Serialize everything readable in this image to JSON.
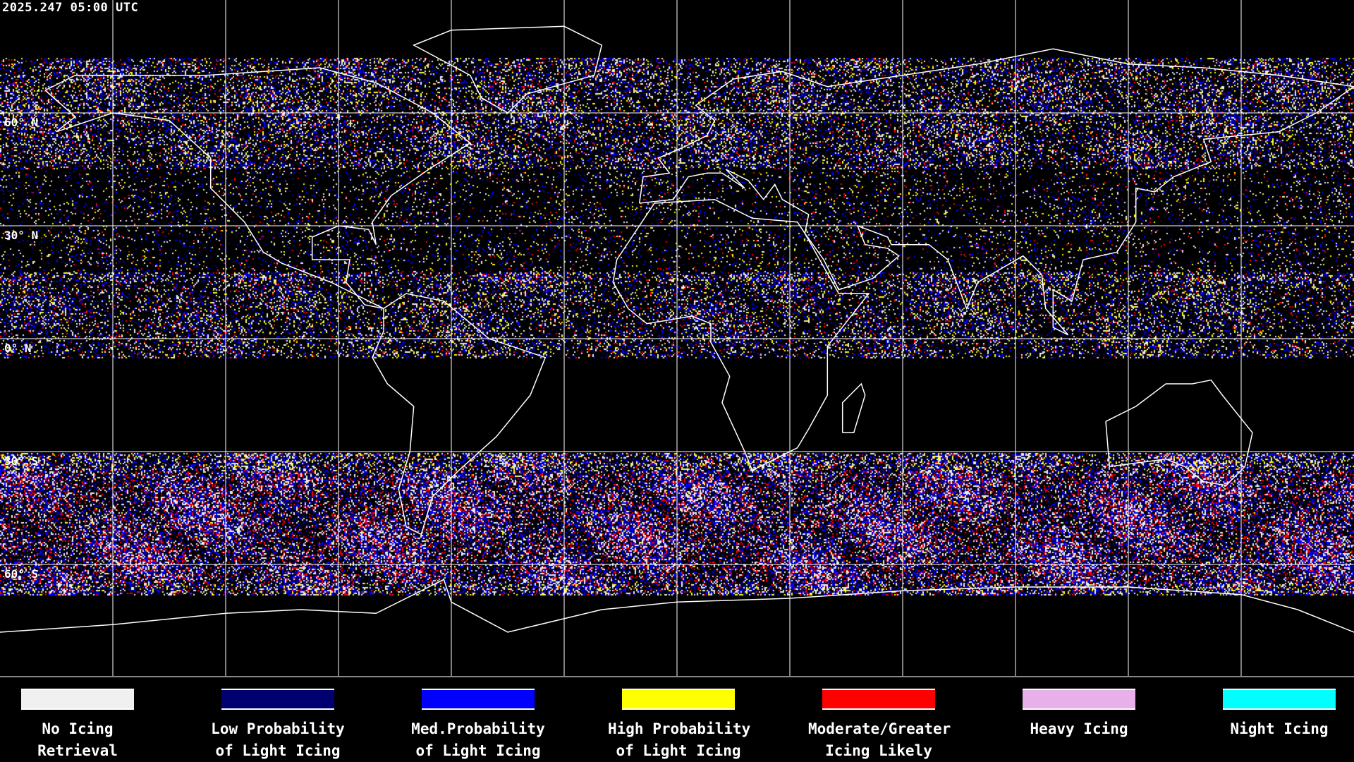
{
  "title": "2025.247 05:00 UTC",
  "lat_labels": [
    "60° N",
    "30° N",
    "0° N",
    "30° S",
    "60° S"
  ],
  "legend": [
    {
      "line1": "No Icing",
      "line2": "Retrieval",
      "color": "#f0f0f0"
    },
    {
      "line1": "Low Probability",
      "line2": "of Light Icing",
      "color": "#000070"
    },
    {
      "line1": "Med.Probability",
      "line2": "of Light Icing",
      "color": "#0000ff"
    },
    {
      "line1": "High Probability",
      "line2": "of Light Icing",
      "color": "#ffff00"
    },
    {
      "line1": "Moderate/Greater",
      "line2": "Icing Likely",
      "color": "#ff0000"
    },
    {
      "line1": "Heavy Icing",
      "line2": "",
      "color": "#e8b0e8"
    },
    {
      "line1": "Night Icing",
      "line2": "",
      "color": "#00ffff"
    }
  ],
  "map": {
    "projection": "equirectangular",
    "lon_range": [
      -180,
      180
    ],
    "lat_range": [
      -90,
      90
    ],
    "grid_spacing_deg": 30,
    "grid_color": "#ffffff",
    "coastline_color": "#ffffff"
  }
}
